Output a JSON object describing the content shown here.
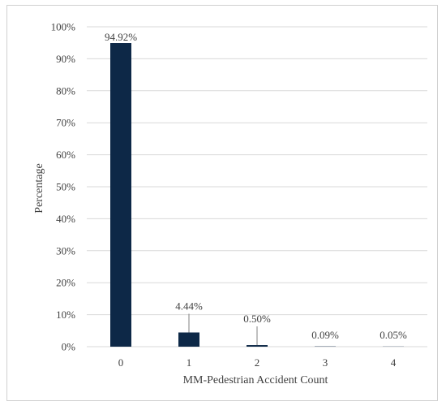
{
  "chart_data": {
    "type": "bar",
    "categories": [
      "0",
      "1",
      "2",
      "3",
      "4"
    ],
    "values": [
      94.92,
      4.44,
      0.5,
      0.09,
      0.05
    ],
    "data_labels": [
      "94.92%",
      "4.44%",
      "0.50%",
      "0.09%",
      "0.05%"
    ],
    "title": "",
    "xlabel": "MM-Pedestrian Accident Count",
    "ylabel": "Percentage",
    "ylim": [
      0,
      100
    ],
    "yticks": [
      0,
      10,
      20,
      30,
      40,
      50,
      60,
      70,
      80,
      90,
      100
    ],
    "ytick_labels": [
      "0%",
      "10%",
      "20%",
      "30%",
      "40%",
      "50%",
      "60%",
      "70%",
      "80%",
      "90%",
      "100%"
    ],
    "grid": true,
    "legend": "none",
    "bar_color": "#0d2847",
    "grid_color": "#d9d9d9"
  }
}
